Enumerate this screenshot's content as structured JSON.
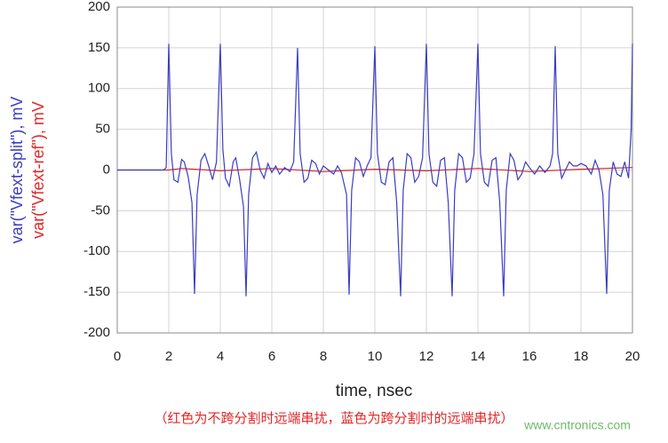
{
  "chart_data": {
    "type": "line",
    "xlabel": "time, nsec",
    "ylabels": [
      "var(\"Vfext-split\"), mV",
      "var(\"Vfext-ref\"), mV"
    ],
    "caption": "（红色为不跨分割时远端串扰，蓝色为跨分割时的远端串扰）",
    "watermark": "www.cntronics.com",
    "xlim": [
      0,
      20
    ],
    "xticks": [
      0,
      2,
      4,
      6,
      8,
      10,
      12,
      14,
      16,
      18,
      20
    ],
    "ylim": [
      -200,
      200
    ],
    "yticks": [
      -200,
      -150,
      -100,
      -50,
      0,
      50,
      100,
      150,
      200
    ],
    "grid": true,
    "series": [
      {
        "name": "Vfext-split",
        "color": "#3a3dc4",
        "x": [
          0,
          1.8,
          1.9,
          2.0,
          2.1,
          2.2,
          2.35,
          2.5,
          2.6,
          2.75,
          2.9,
          3.0,
          3.1,
          3.25,
          3.4,
          3.55,
          3.7,
          3.85,
          4.0,
          4.1,
          4.2,
          4.35,
          4.5,
          4.6,
          4.75,
          4.9,
          5.0,
          5.1,
          5.25,
          5.4,
          5.55,
          5.7,
          5.85,
          6.0,
          6.15,
          6.3,
          6.5,
          6.7,
          6.85,
          7.0,
          7.1,
          7.25,
          7.4,
          7.55,
          7.7,
          7.85,
          8.0,
          8.2,
          8.4,
          8.55,
          8.7,
          8.9,
          9.0,
          9.1,
          9.25,
          9.4,
          9.55,
          9.7,
          9.85,
          10.0,
          10.1,
          10.25,
          10.4,
          10.55,
          10.7,
          10.85,
          11.0,
          11.1,
          11.25,
          11.4,
          11.55,
          11.7,
          11.85,
          12.0,
          12.1,
          12.25,
          12.4,
          12.55,
          12.7,
          12.85,
          13.0,
          13.1,
          13.25,
          13.4,
          13.55,
          13.7,
          13.85,
          14.0,
          14.1,
          14.25,
          14.4,
          14.55,
          14.7,
          14.85,
          15.0,
          15.1,
          15.25,
          15.4,
          15.55,
          15.7,
          15.85,
          16.0,
          16.2,
          16.4,
          16.6,
          16.8,
          16.9,
          17.0,
          17.1,
          17.25,
          17.4,
          17.55,
          17.7,
          17.85,
          18.0,
          18.2,
          18.4,
          18.55,
          18.7,
          18.85,
          19.0,
          19.1,
          19.25,
          19.4,
          19.55,
          19.7,
          19.85,
          19.95,
          20.0
        ],
        "values": [
          0,
          0,
          3,
          155,
          20,
          -12,
          -15,
          13,
          10,
          -8,
          -40,
          -152,
          -30,
          12,
          20,
          5,
          -12,
          10,
          155,
          25,
          -10,
          -20,
          10,
          15,
          -12,
          -45,
          -155,
          -30,
          15,
          22,
          0,
          -10,
          8,
          -3,
          5,
          -5,
          3,
          -2,
          10,
          150,
          20,
          -15,
          -10,
          12,
          8,
          -5,
          5,
          0,
          -5,
          5,
          -3,
          -30,
          -153,
          -25,
          15,
          10,
          -8,
          5,
          15,
          152,
          20,
          -15,
          -18,
          10,
          15,
          -40,
          -155,
          -25,
          20,
          15,
          -15,
          -8,
          15,
          155,
          20,
          -15,
          -20,
          12,
          15,
          -40,
          -155,
          -25,
          20,
          15,
          -15,
          -10,
          20,
          155,
          20,
          -15,
          -20,
          12,
          15,
          -40,
          -155,
          -25,
          20,
          12,
          -12,
          -5,
          10,
          3,
          -5,
          5,
          -3,
          5,
          20,
          152,
          20,
          -10,
          0,
          10,
          5,
          5,
          8,
          5,
          -5,
          12,
          0,
          -30,
          -152,
          -25,
          10,
          -5,
          -8,
          10,
          -10,
          50,
          155
        ]
      },
      {
        "name": "Vfext-ref",
        "color": "#e02828",
        "x": [
          0,
          2,
          2.5,
          4,
          6,
          8,
          10,
          12,
          14,
          16,
          18,
          20
        ],
        "values": [
          0,
          0,
          2,
          -1,
          2,
          -2,
          1,
          -1,
          2,
          -2,
          1,
          3
        ]
      }
    ]
  }
}
